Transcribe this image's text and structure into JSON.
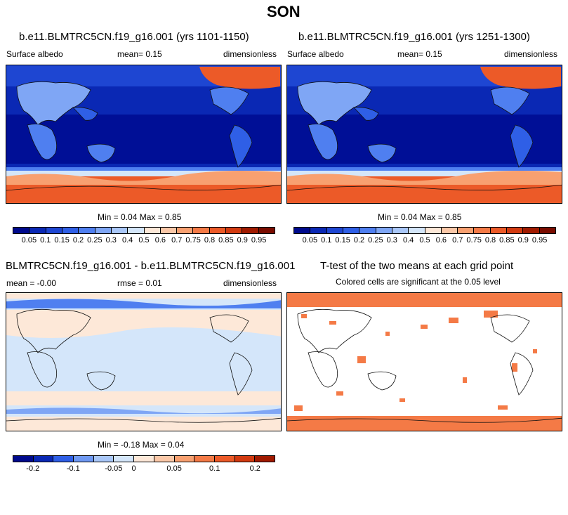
{
  "page": {
    "title": "SON"
  },
  "panels": {
    "p1": {
      "title": "b.e11.BLMTRC5CN.f19_g16.001 (yrs 1101-1150)",
      "left": "Surface albedo",
      "mean": "mean=   0.15",
      "right": "dimensionless",
      "minmax": "Min =   0.04 Max =   0.85"
    },
    "p2": {
      "title": "b.e11.BLMTRC5CN.f19_g16.001 (yrs 1251-1300)",
      "left": "Surface albedo",
      "mean": "mean=   0.15",
      "right": "dimensionless",
      "minmax": "Min =   0.04 Max =   0.85"
    },
    "p3": {
      "title": "BLMTRC5CN.f19_g16.001 - b.e11.BLMTRC5CN.f19_g16.001",
      "left": "mean =  -0.00",
      "mean": "rmse =   0.01",
      "right": "dimensionless",
      "minmax": "Min =  -0.18 Max =   0.04"
    },
    "p4": {
      "title": "T-test of the two means at each grid point",
      "subtitle": "Colored cells are significant at the 0.05 level"
    }
  },
  "colorbars": {
    "albedo": {
      "labels": [
        "0.05",
        "0.1",
        "0.15",
        "0.2",
        "0.25",
        "0.3",
        "0.4",
        "0.5",
        "0.6",
        "0.7",
        "0.75",
        "0.8",
        "0.85",
        "0.9",
        "0.95"
      ],
      "colors": [
        "#000a8c",
        "#0a28b4",
        "#1e46d2",
        "#2f5fe6",
        "#4f7ff0",
        "#7fa6f5",
        "#a9c7f8",
        "#d4e6fa",
        "#fde8d8",
        "#fbc8a8",
        "#f8a070",
        "#f47a46",
        "#ec5a28",
        "#d23a10",
        "#a01a00",
        "#7a0c00"
      ]
    },
    "diff": {
      "labels": [
        "-0.2",
        "-0.1",
        "-0.05",
        "0",
        "0.05",
        "0.1",
        "0.2"
      ],
      "colors": [
        "#000a8c",
        "#0a28b4",
        "#2f5fe6",
        "#6f99f3",
        "#a9c7f8",
        "#d4e6fa",
        "#fde8d8",
        "#fbc8a8",
        "#f8a070",
        "#f47a46",
        "#ec5a28",
        "#d23a10",
        "#a01a00"
      ]
    }
  }
}
